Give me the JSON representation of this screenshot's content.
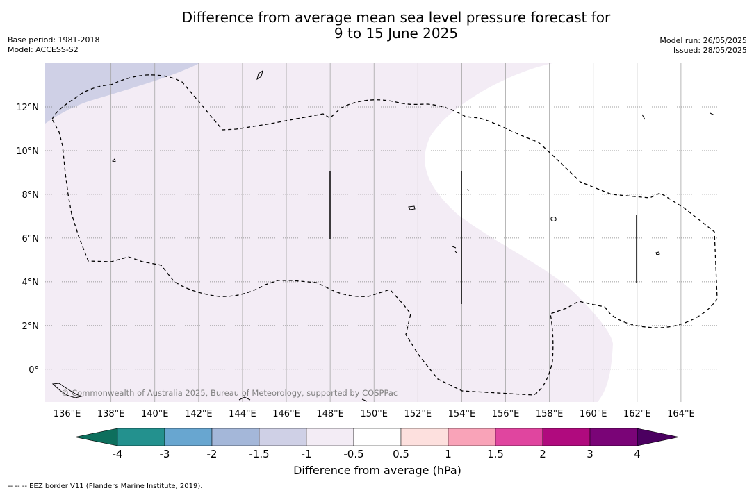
{
  "title": {
    "line1": "Difference from average mean sea level pressure forecast for",
    "line2": "9 to 15 June 2025"
  },
  "meta": {
    "base_period": "Base period: 1981-2018",
    "model": "Model: ACCESS-S2",
    "model_run": "Model run: 26/05/2025",
    "issued": "Issued: 28/05/2025"
  },
  "map": {
    "lon_range": [
      135,
      166
    ],
    "lat_range": [
      -1.5,
      14
    ],
    "lon_ticks": [
      "136°E",
      "138°E",
      "140°E",
      "142°E",
      "144°E",
      "146°E",
      "148°E",
      "150°E",
      "152°E",
      "154°E",
      "156°E",
      "158°E",
      "160°E",
      "162°E",
      "164°E"
    ],
    "lat_ticks": [
      "12°N",
      "10°N",
      "8°N",
      "6°N",
      "4°N",
      "2°N",
      "0°"
    ],
    "copyright": "© Commonwealth of Australia 2025, Bureau of Meteorology, supported by COSPPac",
    "fill_colors": {
      "light_purple": "#f3ecf5",
      "lavender": "#cfd0e6",
      "white": "#ffffff"
    }
  },
  "colorbar": {
    "title": "Difference from average (hPa)",
    "tick_labels": [
      "-4",
      "-3",
      "-2",
      "-1.5",
      "-1",
      "-0.5",
      "0.5",
      "1",
      "1.5",
      "2",
      "3",
      "4"
    ],
    "colors": [
      "#23918e",
      "#68a6d0",
      "#a4b7d9",
      "#cfd0e6",
      "#f3ecf5",
      "#ffffff",
      "#fde0de",
      "#f9a3b8",
      "#e0459f",
      "#b00a7e",
      "#7a0477"
    ],
    "extend_low_color": "#0d6f5d",
    "extend_high_color": "#4b0060"
  },
  "footer": "--  --  -- EEZ border V11 (Flanders Marine Institute, 2019)."
}
